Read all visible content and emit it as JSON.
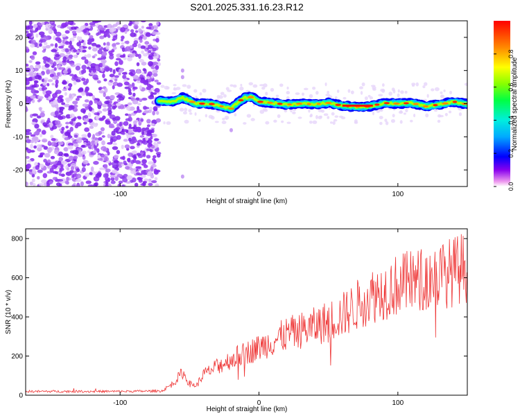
{
  "title": "S201.2025.331.16.23.R12",
  "chart_data": [
    {
      "type": "heatmap",
      "name": "spectrogram",
      "xlabel": "Height of straight line (km)",
      "ylabel": "Frequency (Hz)",
      "xlim": [
        -168,
        150
      ],
      "ylim": [
        -25,
        25
      ],
      "xticks": [
        -100,
        0,
        100
      ],
      "yticks": [
        -20,
        -10,
        0,
        10,
        20
      ],
      "xtick_labels": [
        "-100",
        "0",
        "100"
      ],
      "ytick_labels": [
        "-20",
        "-10",
        "0",
        "10",
        "20"
      ],
      "colorbar": {
        "label": "Normalized spectral amplitude",
        "range": [
          0,
          1
        ],
        "ticks": [
          0.0,
          0.2,
          0.4,
          0.6,
          0.8
        ],
        "tick_labels": [
          "0.0",
          "0.2",
          "0.4",
          "0.6",
          "0.8"
        ],
        "colormap": "rainbow"
      },
      "noise_region_x": [
        -168,
        -72
      ],
      "signal_track": {
        "x": [
          -72,
          -62,
          -55,
          -45,
          -35,
          -25,
          -20,
          -15,
          -10,
          -5,
          0,
          10,
          20,
          30,
          40,
          50,
          60,
          70,
          80,
          90,
          100,
          110,
          120,
          130,
          140,
          150
        ],
        "freq": [
          0.8,
          0.6,
          1.8,
          0.0,
          0.0,
          -1.0,
          -1.5,
          0.5,
          1.8,
          2.0,
          0.6,
          0.2,
          -0.3,
          0.0,
          -0.2,
          0.2,
          -0.6,
          -1.0,
          -0.8,
          0.2,
          0.0,
          0.2,
          -0.8,
          -0.3,
          0.6,
          -0.2
        ],
        "peak_amplitude": 1.0
      },
      "isolated_spots": [
        [
          -55,
          10
        ],
        [
          -55,
          8
        ],
        [
          -20,
          -8
        ],
        [
          -55,
          -22
        ]
      ]
    },
    {
      "type": "line",
      "name": "snr",
      "xlabel": "Height of straight line (km)",
      "ylabel": "SNR (10 * v/v)",
      "xlim": [
        -168,
        150
      ],
      "ylim": [
        0,
        850
      ],
      "xticks": [
        -100,
        0,
        100
      ],
      "yticks": [
        0,
        200,
        400,
        600,
        800
      ],
      "xtick_labels": [
        "-100",
        "0",
        "100"
      ],
      "ytick_labels": [
        "0",
        "200",
        "400",
        "600",
        "800"
      ],
      "color": "#ee3333",
      "trend": {
        "x": [
          -168,
          -100,
          -70,
          -62,
          -55,
          -50,
          -45,
          -40,
          -20,
          0,
          20,
          40,
          60,
          80,
          100,
          120,
          140,
          150
        ],
        "y": [
          20,
          20,
          22,
          60,
          120,
          60,
          50,
          110,
          190,
          250,
          320,
          360,
          420,
          520,
          580,
          610,
          650,
          680
        ]
      }
    }
  ]
}
